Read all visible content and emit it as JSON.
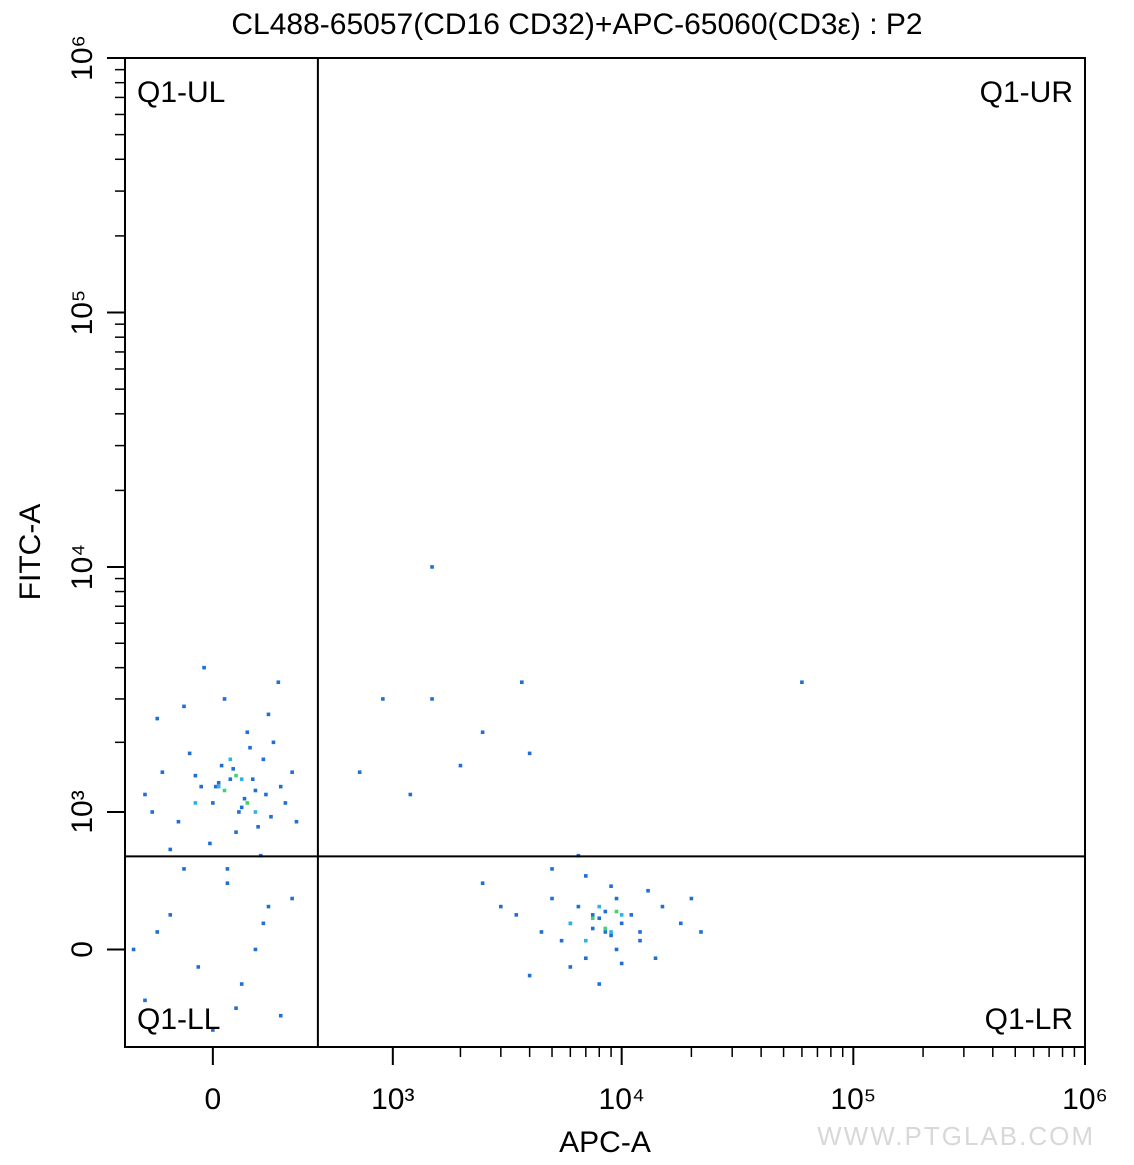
{
  "chart_data": {
    "type": "scatter",
    "title": "CL488-65057(CD16 CD32)+APC-65060(CD3ε) : P2",
    "x_label": "APC-A",
    "y_label": "FITC-A",
    "xscale": "biexponential",
    "yscale": "biexponential",
    "xlim": [
      -340,
      1000000
    ],
    "ylim": [
      -630,
      1000000
    ],
    "xticks": [
      0,
      {
        "value": 1000,
        "label": "10³"
      },
      {
        "value": 10000,
        "label": "10⁴"
      },
      {
        "value": 100000,
        "label": "10⁵"
      },
      {
        "value": 1000000,
        "label": "10⁶"
      }
    ],
    "yticks": [
      0,
      {
        "value": 1000,
        "label": "10³"
      },
      {
        "value": 10000,
        "label": "10⁴"
      },
      {
        "value": 100000,
        "label": "10⁵"
      },
      {
        "value": 1000000,
        "label": "10⁶"
      }
    ],
    "x_minor_ticks": [
      2000,
      3000,
      4000,
      5000,
      6000,
      7000,
      8000,
      9000,
      20000,
      30000,
      40000,
      50000,
      60000,
      70000,
      80000,
      90000,
      200000,
      300000,
      400000,
      500000,
      600000,
      700000,
      800000,
      900000
    ],
    "y_minor_ticks": [
      2000,
      3000,
      4000,
      5000,
      6000,
      7000,
      8000,
      9000,
      20000,
      30000,
      40000,
      50000,
      60000,
      70000,
      80000,
      90000,
      200000,
      300000,
      400000,
      500000,
      600000,
      700000,
      800000,
      900000
    ],
    "gates": {
      "x": 428,
      "y": 594
    },
    "quadrants": {
      "UL": "Q1-UL",
      "UR": "Q1-UR",
      "LL": "Q1-LL",
      "LR": "Q1-LR"
    },
    "watermark": "WWW.PTGLAB.COM",
    "series": [
      {
        "color": "#1f6fd6",
        "x": [
          -250,
          -180,
          -120,
          -80,
          -40,
          0,
          30,
          60,
          90,
          120,
          150,
          180,
          210,
          250,
          300,
          -200,
          -100,
          -10,
          40,
          80,
          130,
          170,
          220,
          270,
          -150,
          -60,
          20,
          70,
          110,
          160,
          200,
          240,
          -220,
          -30,
          50,
          100,
          140,
          190,
          320,
          10,
          3500,
          4500,
          5000,
          5500,
          6000,
          6500,
          7000,
          7500,
          8000,
          8500,
          9000,
          9500,
          10000,
          11000,
          12000,
          13000,
          15000,
          18000,
          22000,
          2500,
          4000,
          6000,
          7000,
          8000,
          9000,
          10000,
          12000,
          5000,
          7500,
          8500,
          14000,
          3000,
          20000,
          6500,
          9500,
          -250,
          -150,
          -50,
          50,
          150,
          250,
          300,
          -200,
          0,
          100,
          200,
          -100,
          -300,
          80,
          180,
          1500,
          60000,
          3700,
          900,
          1500,
          2500,
          700,
          1200,
          4000,
          2000
        ],
        "y": [
          1200,
          1500,
          900,
          1800,
          1300,
          1100,
          1600,
          1400,
          1000,
          2200,
          1250,
          1700,
          950,
          1300,
          1500,
          2500,
          2800,
          700,
          3000,
          800,
          1900,
          600,
          2000,
          1100,
          650,
          1450,
          1350,
          1550,
          1150,
          850,
          2600,
          3500,
          1000,
          4000,
          500,
          1050,
          1400,
          1200,
          900,
          1300,
          200,
          100,
          300,
          50,
          150,
          250,
          -50,
          120,
          180,
          220,
          80,
          300,
          150,
          200,
          100,
          350,
          250,
          150,
          100,
          400,
          -150,
          -100,
          450,
          -200,
          380,
          -80,
          50,
          500,
          200,
          100,
          -50,
          250,
          300,
          600,
          0,
          -300,
          200,
          -100,
          400,
          0,
          -400,
          300,
          100,
          -500,
          -200,
          250,
          500,
          0,
          -350,
          150,
          10000,
          3500,
          3500,
          3000,
          3000,
          2200,
          1500,
          1200,
          1800,
          1600
        ]
      },
      {
        "color": "#2bb3e6",
        "x": [
          20,
          100,
          -60,
          150,
          60,
          6000,
          8000,
          9000,
          7000,
          10000
        ],
        "y": [
          1300,
          1400,
          1100,
          1000,
          1700,
          150,
          250,
          100,
          50,
          200
        ]
      },
      {
        "color": "#3fd36a",
        "x": [
          40,
          120,
          80,
          7500,
          8500,
          9500
        ],
        "y": [
          1250,
          1100,
          1450,
          180,
          120,
          220
        ]
      }
    ]
  }
}
